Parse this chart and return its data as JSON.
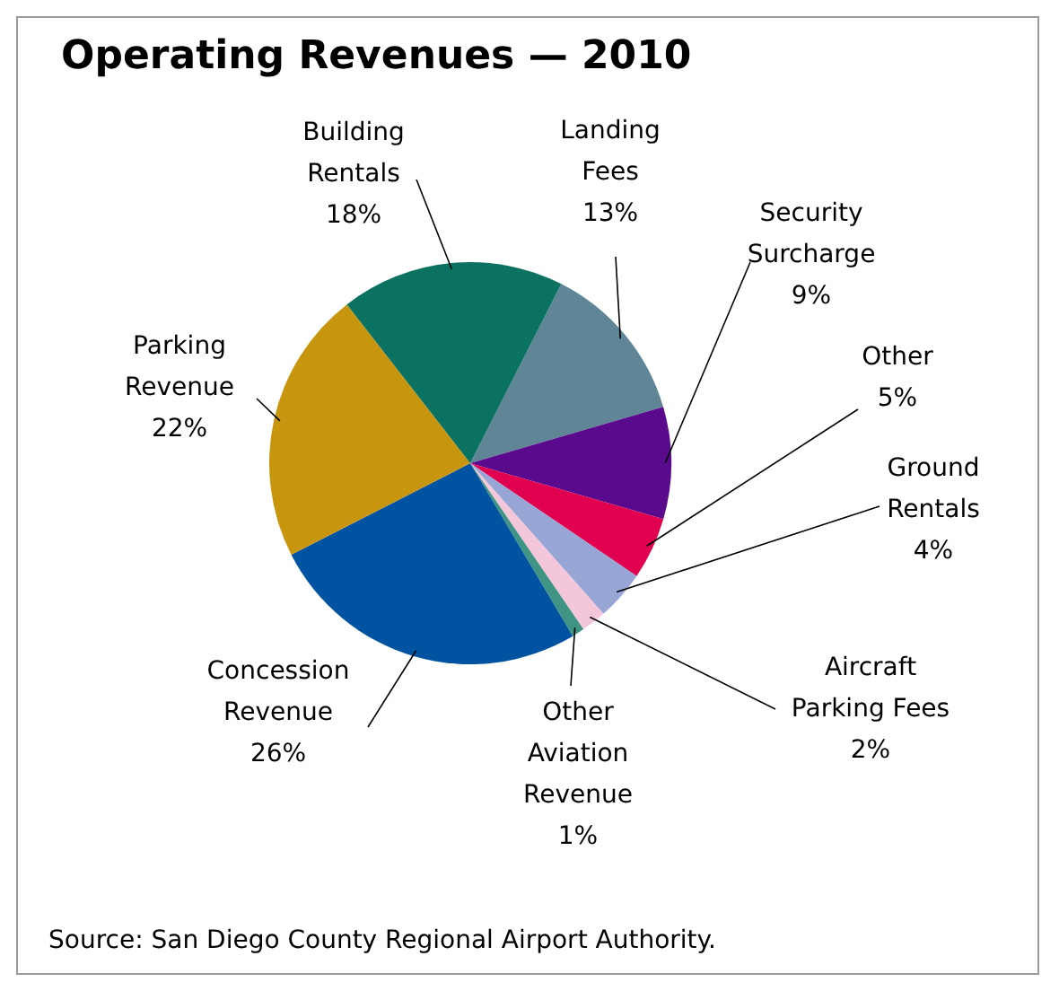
{
  "chart_data": {
    "type": "pie",
    "title": "Operating Revenues — 2010",
    "categories": [
      "Landing Fees",
      "Security Surcharge",
      "Other",
      "Ground Rentals",
      "Aircraft Parking Fees",
      "Other Aviation Revenue",
      "Concession Revenue",
      "Parking Revenue",
      "Building Rentals"
    ],
    "values": [
      13,
      9,
      5,
      4,
      2,
      1,
      26,
      22,
      18
    ],
    "value_labels": [
      "13%",
      "9%",
      "5%",
      "4%",
      "2%",
      "1%",
      "26%",
      "22%",
      "18%"
    ],
    "colors": [
      "#5f8597",
      "#5a0a8c",
      "#e0004f",
      "#98a6d6",
      "#f4c6da",
      "#3f9484",
      "#0053a0",
      "#c8950e",
      "#0b7262"
    ],
    "annotations": [
      "Source: San Diego County Regional Airport Authority."
    ]
  }
}
